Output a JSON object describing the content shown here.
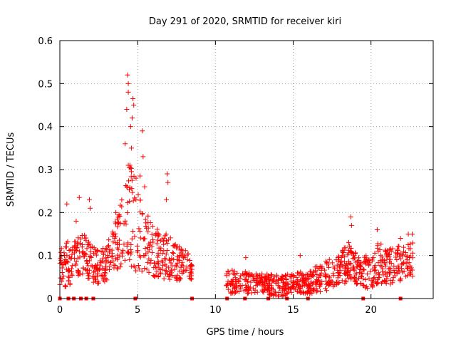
{
  "chart_data": {
    "type": "scatter",
    "title": "Day 291 of 2020, SRMTID for receiver kiri",
    "xlabel": "GPS time / hours",
    "ylabel": "SRMTID / TECUs",
    "xlim": [
      0,
      24
    ],
    "ylim": [
      0,
      0.6
    ],
    "grid": true,
    "marker": "+",
    "x_ticks": [
      0,
      5,
      10,
      15,
      20
    ],
    "x_tick_labels": [
      "0",
      "5",
      "10",
      "15",
      "20"
    ],
    "y_ticks": [
      0,
      0.1,
      0.2,
      0.3,
      0.4,
      0.5,
      0.6
    ],
    "y_tick_labels": [
      "0",
      "0.1",
      "0.2",
      "0.3",
      "0.4",
      "0.5",
      "0.6"
    ],
    "series_color": "#ff0000",
    "zero_markers_x": [
      0.0,
      0.55,
      0.9,
      1.35,
      1.7,
      2.15,
      4.85,
      8.5,
      10.75,
      11.9,
      13.4,
      14.6,
      15.95,
      19.5,
      21.9
    ],
    "envelope": [
      {
        "t": 0.0,
        "base": 0.06,
        "spread": 0.06
      },
      {
        "t": 0.5,
        "base": 0.06,
        "spread": 0.08
      },
      {
        "t": 1.0,
        "base": 0.08,
        "spread": 0.06
      },
      {
        "t": 1.5,
        "base": 0.09,
        "spread": 0.07
      },
      {
        "t": 2.0,
        "base": 0.07,
        "spread": 0.06
      },
      {
        "t": 2.5,
        "base": 0.06,
        "spread": 0.06
      },
      {
        "t": 3.0,
        "base": 0.07,
        "spread": 0.06
      },
      {
        "t": 3.5,
        "base": 0.1,
        "spread": 0.08
      },
      {
        "t": 4.0,
        "base": 0.13,
        "spread": 0.12
      },
      {
        "t": 4.4,
        "base": 0.16,
        "spread": 0.18
      },
      {
        "t": 4.8,
        "base": 0.14,
        "spread": 0.16
      },
      {
        "t": 5.2,
        "base": 0.12,
        "spread": 0.12
      },
      {
        "t": 5.8,
        "base": 0.1,
        "spread": 0.09
      },
      {
        "t": 6.5,
        "base": 0.08,
        "spread": 0.08
      },
      {
        "t": 7.0,
        "base": 0.08,
        "spread": 0.08
      },
      {
        "t": 7.5,
        "base": 0.07,
        "spread": 0.06
      },
      {
        "t": 8.0,
        "base": 0.07,
        "spread": 0.05
      },
      {
        "t": 8.5,
        "base": 0.06,
        "spread": 0.04
      },
      {
        "t": 10.7,
        "base": 0.03,
        "spread": 0.04
      },
      {
        "t": 12.0,
        "base": 0.03,
        "spread": 0.04
      },
      {
        "t": 13.0,
        "base": 0.03,
        "spread": 0.03
      },
      {
        "t": 14.0,
        "base": 0.02,
        "spread": 0.04
      },
      {
        "t": 15.0,
        "base": 0.03,
        "spread": 0.03
      },
      {
        "t": 16.0,
        "base": 0.03,
        "spread": 0.04
      },
      {
        "t": 17.0,
        "base": 0.04,
        "spread": 0.05
      },
      {
        "t": 18.0,
        "base": 0.06,
        "spread": 0.05
      },
      {
        "t": 18.6,
        "base": 0.07,
        "spread": 0.07
      },
      {
        "t": 19.2,
        "base": 0.05,
        "spread": 0.05
      },
      {
        "t": 20.0,
        "base": 0.05,
        "spread": 0.06
      },
      {
        "t": 20.5,
        "base": 0.07,
        "spread": 0.07
      },
      {
        "t": 21.0,
        "base": 0.06,
        "spread": 0.06
      },
      {
        "t": 22.0,
        "base": 0.07,
        "spread": 0.06
      },
      {
        "t": 22.7,
        "base": 0.08,
        "spread": 0.06
      }
    ],
    "peaks": [
      {
        "x": 4.35,
        "y": 0.52
      },
      {
        "x": 4.4,
        "y": 0.5
      },
      {
        "x": 4.4,
        "y": 0.48
      },
      {
        "x": 4.7,
        "y": 0.465
      },
      {
        "x": 4.75,
        "y": 0.45
      },
      {
        "x": 4.65,
        "y": 0.42
      },
      {
        "x": 4.3,
        "y": 0.44
      },
      {
        "x": 4.55,
        "y": 0.4
      },
      {
        "x": 5.3,
        "y": 0.39
      },
      {
        "x": 4.2,
        "y": 0.36
      },
      {
        "x": 4.6,
        "y": 0.35
      },
      {
        "x": 4.5,
        "y": 0.31
      },
      {
        "x": 4.4,
        "y": 0.31
      },
      {
        "x": 5.35,
        "y": 0.33
      },
      {
        "x": 4.9,
        "y": 0.28
      },
      {
        "x": 5.15,
        "y": 0.285
      },
      {
        "x": 6.9,
        "y": 0.29
      },
      {
        "x": 6.95,
        "y": 0.27
      },
      {
        "x": 4.3,
        "y": 0.26
      },
      {
        "x": 5.45,
        "y": 0.26
      },
      {
        "x": 6.85,
        "y": 0.23
      },
      {
        "x": 0.45,
        "y": 0.22
      },
      {
        "x": 1.25,
        "y": 0.235
      },
      {
        "x": 1.9,
        "y": 0.23
      },
      {
        "x": 1.95,
        "y": 0.21
      },
      {
        "x": 1.05,
        "y": 0.18
      },
      {
        "x": 3.6,
        "y": 0.2
      },
      {
        "x": 18.7,
        "y": 0.19
      },
      {
        "x": 18.75,
        "y": 0.17
      },
      {
        "x": 20.4,
        "y": 0.16
      },
      {
        "x": 21.9,
        "y": 0.14
      },
      {
        "x": 22.4,
        "y": 0.15
      },
      {
        "x": 22.65,
        "y": 0.15
      },
      {
        "x": 0.35,
        "y": 0.03
      },
      {
        "x": 11.95,
        "y": 0.095
      },
      {
        "x": 15.45,
        "y": 0.1
      }
    ],
    "gap": [
      8.5,
      10.7
    ],
    "point_count": 1400
  }
}
